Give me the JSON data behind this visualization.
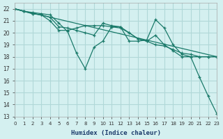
{
  "xlabel": "Humidex (Indice chaleur)",
  "ylabel": "",
  "background_color": "#d4f0f0",
  "grid_color": "#b0d8d8",
  "line_color": "#1a7a6a",
  "xlim": [
    0,
    23
  ],
  "ylim": [
    13,
    22.5
  ],
  "yticks": [
    13,
    14,
    15,
    16,
    17,
    18,
    19,
    20,
    21,
    22
  ],
  "xticks": [
    0,
    1,
    2,
    3,
    4,
    5,
    6,
    7,
    8,
    9,
    10,
    11,
    12,
    13,
    14,
    15,
    16,
    17,
    18,
    19,
    20,
    21,
    22,
    23
  ],
  "series": [
    {
      "x": [
        0,
        1,
        2,
        3,
        4,
        5,
        6,
        7,
        8,
        9,
        10,
        11,
        12,
        13,
        14,
        15,
        16,
        17,
        18,
        19,
        20,
        21,
        22,
        23
      ],
      "y": [
        22,
        21.8,
        21.7,
        21.6,
        21.5,
        20.8,
        20.1,
        18.3,
        17.0,
        18.8,
        19.3,
        20.5,
        20.5,
        19.3,
        19.3,
        19.4,
        21.1,
        20.4,
        19.0,
        18.2,
        18.0,
        16.3,
        14.7,
        13.2
      ]
    },
    {
      "x": [
        0,
        1,
        2,
        3,
        4,
        5,
        6,
        7,
        8,
        9,
        10,
        11,
        12,
        13,
        14,
        15,
        16,
        17,
        18,
        19,
        20,
        21,
        22,
        23
      ],
      "y": [
        22,
        21.8,
        21.6,
        21.5,
        21.0,
        20.2,
        20.2,
        20.4,
        20.6,
        20.6,
        20.6,
        20.5,
        20.4,
        20.0,
        19.5,
        19.3,
        19.8,
        19.0,
        18.5,
        18.0,
        18.0,
        18.0,
        18.0,
        18.0
      ]
    },
    {
      "x": [
        0,
        1,
        2,
        3,
        4,
        5,
        6,
        7,
        8,
        9,
        10,
        11,
        12,
        13,
        14,
        15,
        16,
        17,
        18,
        19,
        20,
        21,
        22,
        23
      ],
      "y": [
        22,
        21.8,
        21.6,
        21.5,
        21.3,
        20.5,
        20.4,
        20.2,
        20.0,
        19.8,
        20.8,
        20.6,
        20.5,
        20.0,
        19.5,
        19.3,
        19.0,
        18.9,
        18.6,
        18.3,
        18.2,
        18.0,
        18.0,
        18.0
      ]
    },
    {
      "x": [
        0,
        23
      ],
      "y": [
        22,
        18
      ]
    }
  ]
}
